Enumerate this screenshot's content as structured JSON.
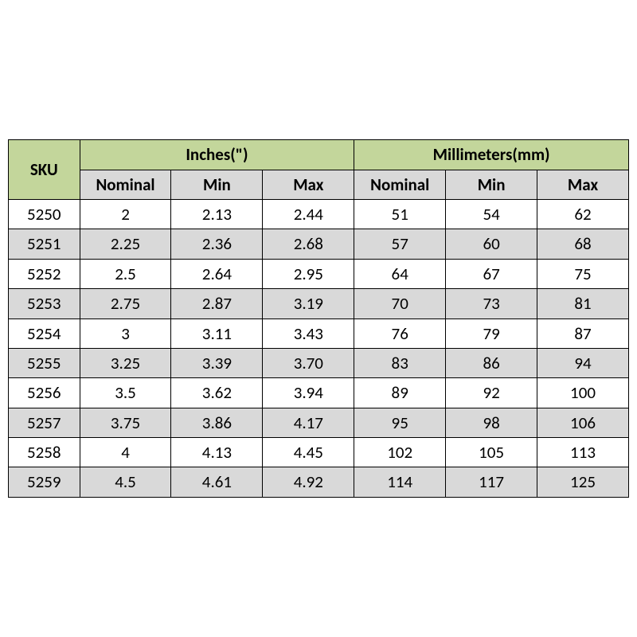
{
  "table": {
    "type": "table",
    "background_color": "#ffffff",
    "border_color": "#000000",
    "font_family": "Calibri, Arial, sans-serif",
    "header_fontsize_pt": 16,
    "cell_fontsize_pt": 16,
    "header_fill_primary": "#c3d69b",
    "header_fill_secondary": "#d9d9d9",
    "row_stripe_even": "#ffffff",
    "row_stripe_odd": "#d9d9d9",
    "column_widths_pct": [
      11.5,
      14.75,
      14.75,
      14.75,
      14.75,
      14.75,
      14.75
    ],
    "headers": {
      "sku": "SKU",
      "inches_group": "Inches(\")",
      "mm_group": "Millimeters(mm)",
      "nominal": "Nominal",
      "min": "Min",
      "max": "Max"
    },
    "columns": [
      "SKU",
      "Inches Nominal",
      "Inches Min",
      "Inches Max",
      "mm Nominal",
      "mm Min",
      "mm Max"
    ],
    "rows": [
      [
        "5250",
        "2",
        "2.13",
        "2.44",
        "51",
        "54",
        "62"
      ],
      [
        "5251",
        "2.25",
        "2.36",
        "2.68",
        "57",
        "60",
        "68"
      ],
      [
        "5252",
        "2.5",
        "2.64",
        "2.95",
        "64",
        "67",
        "75"
      ],
      [
        "5253",
        "2.75",
        "2.87",
        "3.19",
        "70",
        "73",
        "81"
      ],
      [
        "5254",
        "3",
        "3.11",
        "3.43",
        "76",
        "79",
        "87"
      ],
      [
        "5255",
        "3.25",
        "3.39",
        "3.70",
        "83",
        "86",
        "94"
      ],
      [
        "5256",
        "3.5",
        "3.62",
        "3.94",
        "89",
        "92",
        "100"
      ],
      [
        "5257",
        "3.75",
        "3.86",
        "4.17",
        "95",
        "98",
        "106"
      ],
      [
        "5258",
        "4",
        "4.13",
        "4.45",
        "102",
        "105",
        "113"
      ],
      [
        "5259",
        "4.5",
        "4.61",
        "4.92",
        "114",
        "117",
        "125"
      ]
    ]
  }
}
